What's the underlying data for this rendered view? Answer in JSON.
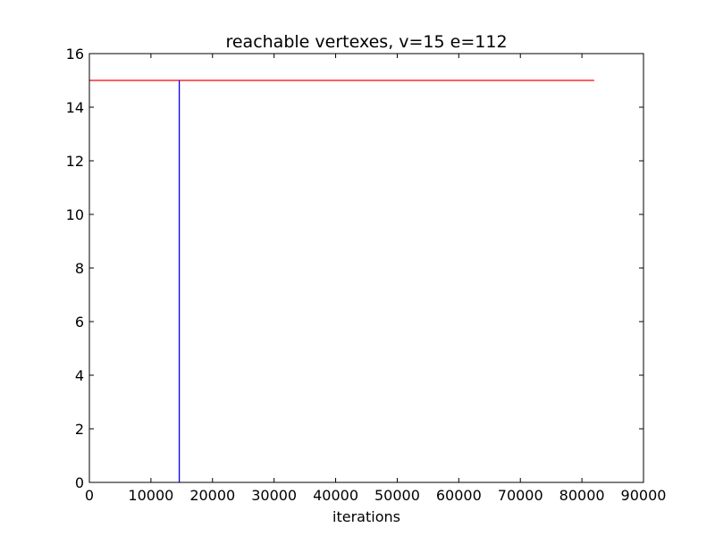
{
  "chart_data": {
    "type": "line",
    "title": "reachable vertexes, v=15 e=112",
    "xlabel": "iterations",
    "ylabel": "",
    "xlim": [
      0,
      90000
    ],
    "ylim": [
      0,
      16
    ],
    "xticks": [
      0,
      10000,
      20000,
      30000,
      40000,
      50000,
      60000,
      70000,
      80000,
      90000
    ],
    "xtick_labels": [
      "0",
      "10000",
      "20000",
      "30000",
      "40000",
      "50000",
      "60000",
      "70000",
      "80000",
      "90000"
    ],
    "yticks": [
      0,
      2,
      4,
      6,
      8,
      10,
      12,
      14,
      16
    ],
    "ytick_labels": [
      "0",
      "2",
      "4",
      "6",
      "8",
      "10",
      "12",
      "14",
      "16"
    ],
    "grid": false,
    "legend": "none",
    "series": [
      {
        "color": "#ff0000",
        "x": [
          0,
          82000
        ],
        "y": [
          15,
          15
        ]
      },
      {
        "color": "#0000ff",
        "x": [
          14600,
          14600
        ],
        "y": [
          0,
          15
        ]
      }
    ]
  }
}
